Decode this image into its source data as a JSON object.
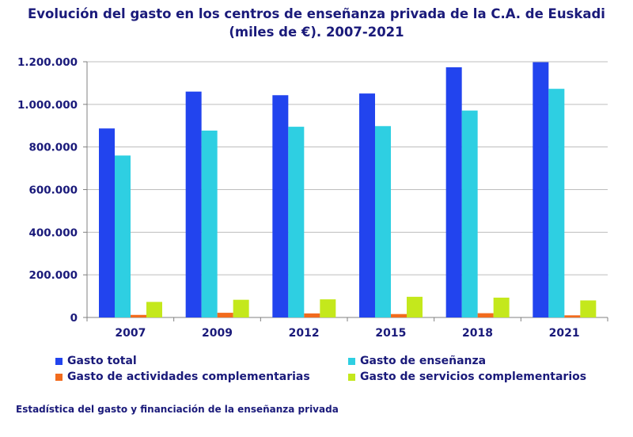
{
  "chart_data": {
    "type": "bar",
    "title": "Evolución del gasto en los centros de enseñanza privada de la C.A. de Euskadi",
    "subtitle": "(miles de €). 2007-2021",
    "categories": [
      "2007",
      "2009",
      "2012",
      "2015",
      "2018",
      "2021"
    ],
    "series": [
      {
        "name": "Gasto total",
        "color": "#2244ee",
        "values": [
          887000,
          1060000,
          1043000,
          1051000,
          1174000,
          1198000
        ]
      },
      {
        "name": "Gasto de enseñanza",
        "color": "#2ecfe2",
        "values": [
          760000,
          877000,
          895000,
          898000,
          971000,
          1073000
        ]
      },
      {
        "name": "Gasto de actividades complementarias",
        "color": "#f26b1d",
        "values": [
          12000,
          22000,
          19000,
          16000,
          20000,
          10000
        ]
      },
      {
        "name": "Gasto de servicios complementarios",
        "color": "#c4e81c",
        "values": [
          73000,
          83000,
          85000,
          97000,
          93000,
          80000
        ]
      }
    ],
    "yticks": [
      "0",
      "200.000",
      "400.000",
      "600.000",
      "800.000",
      "1.000.000",
      "1.200.000"
    ],
    "ylim": [
      0,
      1200000
    ],
    "xlabel": "",
    "ylabel": "",
    "grid": true,
    "legend_position": "bottom"
  },
  "footer": {
    "source": "Estadística del gasto y financiación de la enseñanza privada"
  }
}
